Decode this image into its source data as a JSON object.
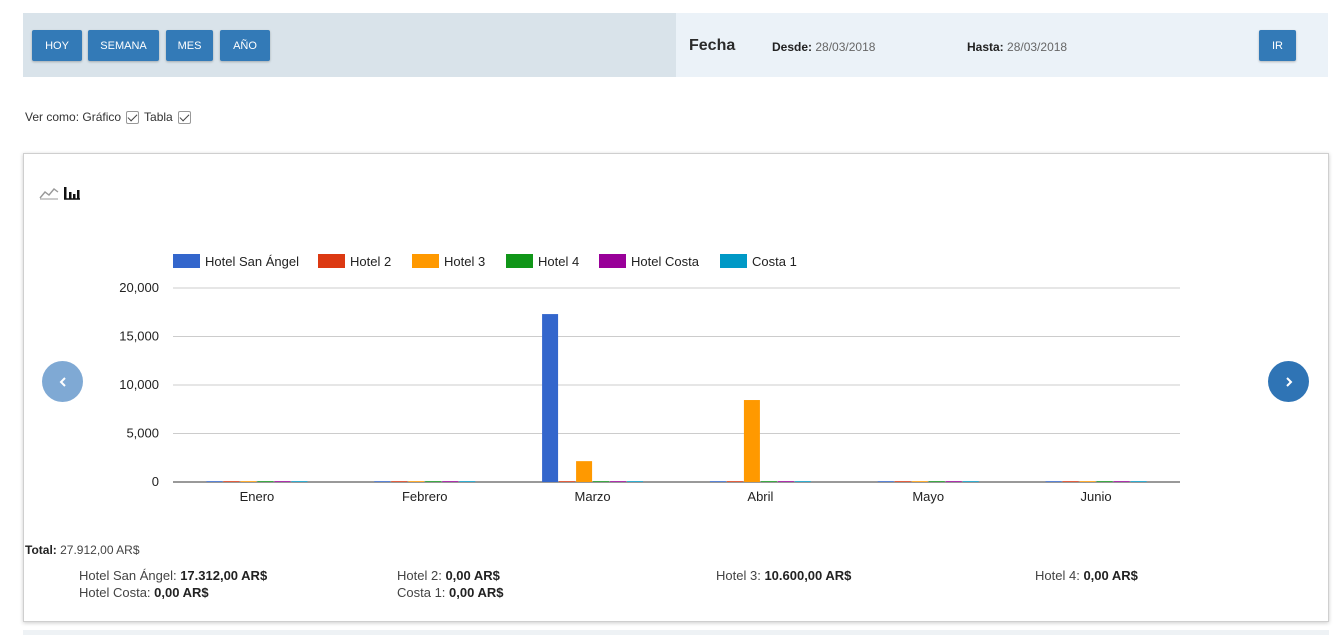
{
  "toolbar": {
    "buttons": [
      "HOY",
      "SEMANA",
      "MES",
      "AÑO"
    ],
    "fecha_label": "Fecha",
    "desde_label": "Desde:",
    "desde_value": "28/03/2018",
    "hasta_label": "Hasta:",
    "hasta_value": "28/03/2018",
    "ir_label": "IR"
  },
  "view_as": {
    "label": "Ver como: Gráfico",
    "grafico_checked": true,
    "tabla_label": "Tabla",
    "tabla_checked": true
  },
  "chart_data": {
    "type": "bar",
    "categories": [
      "Enero",
      "Febrero",
      "Marzo",
      "Abril",
      "Mayo",
      "Junio"
    ],
    "series": [
      {
        "name": "Hotel San Ángel",
        "color": "#3366cc",
        "values": [
          0,
          0,
          17312,
          0,
          0,
          0
        ]
      },
      {
        "name": "Hotel 2",
        "color": "#dc3912",
        "values": [
          0,
          0,
          0,
          0,
          0,
          0
        ]
      },
      {
        "name": "Hotel 3",
        "color": "#ff9900",
        "values": [
          0,
          0,
          2150,
          8450,
          0,
          0
        ]
      },
      {
        "name": "Hotel 4",
        "color": "#109618",
        "values": [
          0,
          0,
          0,
          0,
          0,
          0
        ]
      },
      {
        "name": "Hotel Costa",
        "color": "#990099",
        "values": [
          0,
          0,
          0,
          0,
          0,
          0
        ]
      },
      {
        "name": "Costa 1",
        "color": "#0099c6",
        "values": [
          0,
          0,
          0,
          0,
          0,
          0
        ]
      }
    ],
    "yticks": [
      "0",
      "5,000",
      "10,000",
      "15,000",
      "20,000"
    ],
    "ylim": [
      0,
      20000
    ],
    "grid": true,
    "legend": "top"
  },
  "totals": {
    "total_label": "Total:",
    "total_value": "27.912,00 AR$",
    "hotels": [
      {
        "label": "Hotel San Ángel:",
        "value": "17.312,00 AR$"
      },
      {
        "label": "Hotel 2:",
        "value": "0,00 AR$"
      },
      {
        "label": "Hotel 3:",
        "value": "10.600,00 AR$"
      },
      {
        "label": "Hotel 4:",
        "value": "0,00 AR$"
      },
      {
        "label": "Hotel Costa:",
        "value": "0,00 AR$"
      },
      {
        "label": "Costa 1:",
        "value": "0,00 AR$"
      }
    ]
  },
  "colors": {
    "primary": "#337ab7",
    "nav_prev": "#7fa9d4",
    "nav_next": "#2f74b5"
  },
  "icons": {
    "line_chart": "line-chart-icon",
    "bar_chart": "bar-chart-icon",
    "prev": "chevron-left-icon",
    "next": "chevron-right-icon"
  }
}
